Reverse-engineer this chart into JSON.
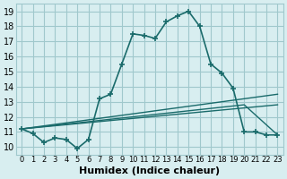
{
  "xlabel": "Humidex (Indice chaleur)",
  "background_color": "#d8eef0",
  "grid_color": "#a0c8cc",
  "line_color": "#1a6b6b",
  "xlim": [
    -0.5,
    23.5
  ],
  "ylim": [
    9.5,
    19.5
  ],
  "xticks": [
    0,
    1,
    2,
    3,
    4,
    5,
    6,
    7,
    8,
    9,
    10,
    11,
    12,
    13,
    14,
    15,
    16,
    17,
    18,
    19,
    20,
    21,
    22,
    23
  ],
  "yticks": [
    10,
    11,
    12,
    13,
    14,
    15,
    16,
    17,
    18,
    19
  ],
  "series": [
    {
      "x": [
        0,
        1,
        2,
        3,
        4,
        5,
        6,
        7,
        8,
        9,
        10,
        11,
        12,
        13,
        14,
        15,
        16,
        17,
        18,
        19,
        20,
        21,
        22,
        23
      ],
      "y": [
        11.2,
        10.9,
        10.3,
        10.6,
        10.5,
        9.9,
        10.5,
        13.2,
        13.5,
        15.5,
        17.5,
        17.4,
        17.2,
        18.3,
        18.7,
        19.0,
        18.0,
        15.5,
        14.9,
        13.9,
        11.0,
        11.0,
        10.8,
        10.8
      ]
    },
    {
      "x": [
        0,
        23
      ],
      "y": [
        11.2,
        13.5
      ]
    },
    {
      "x": [
        0,
        23
      ],
      "y": [
        11.2,
        12.8
      ]
    },
    {
      "x": [
        0,
        20,
        23
      ],
      "y": [
        11.2,
        12.8,
        10.8
      ]
    }
  ]
}
